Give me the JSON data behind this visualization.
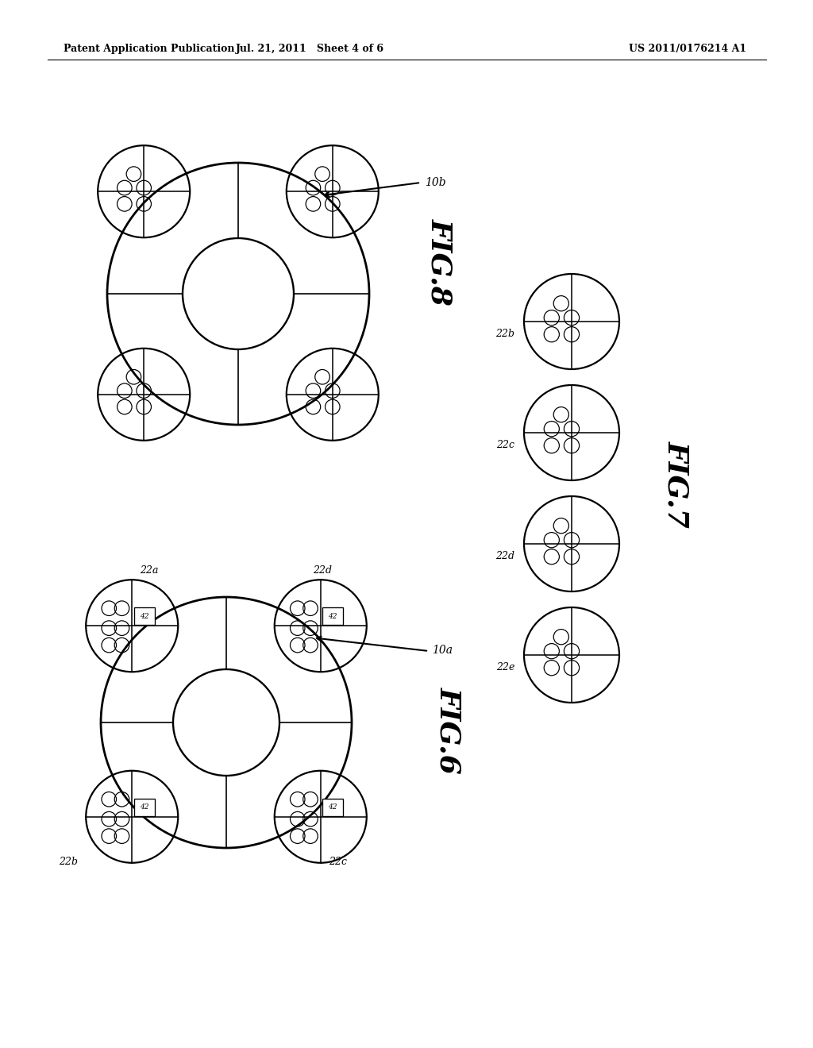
{
  "background_color": "#ffffff",
  "header_left": "Patent Application Publication",
  "header_center": "Jul. 21, 2011   Sheet 4 of 6",
  "header_right": "US 2011/0176214 A1",
  "header_fontsize": 9,
  "fig8_label": "FIG.8",
  "fig7_label": "FIG.7",
  "fig6_label": "FIG.6",
  "fig8_ref": "10b",
  "fig6_ref": "10a"
}
